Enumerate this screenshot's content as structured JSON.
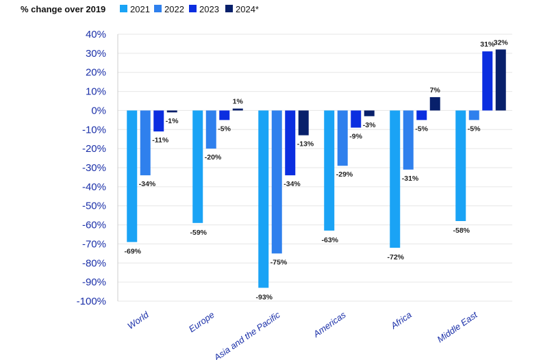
{
  "chart_data": {
    "type": "bar",
    "title": "% change over 2019",
    "categories": [
      "World",
      "Europe",
      "Asia and the Pacific",
      "Americas",
      "Africa",
      "Middle East"
    ],
    "series": [
      {
        "name": "2021",
        "color": "#1aa3f5",
        "values": [
          -69,
          -59,
          -93,
          -63,
          -72,
          -58
        ]
      },
      {
        "name": "2022",
        "color": "#2f80ed",
        "values": [
          -34,
          -20,
          -75,
          -29,
          -31,
          -5
        ]
      },
      {
        "name": "2023",
        "color": "#0b2ee0",
        "values": [
          -11,
          -5,
          -34,
          -9,
          -5,
          31
        ]
      },
      {
        "name": "2024*",
        "color": "#08206b",
        "values": [
          -1,
          1,
          -13,
          -3,
          7,
          32
        ]
      }
    ],
    "data_labels": [
      [
        "-69%",
        "-59%",
        "-93%",
        "-63%",
        "-72%",
        "-58%"
      ],
      [
        "-34%",
        "-20%",
        "-75%",
        "-29%",
        "-31%",
        "-5%"
      ],
      [
        "-11%",
        "-5%",
        "-34%",
        "-9%",
        "-5%",
        "31%"
      ],
      [
        "-1%",
        "1%",
        "-13%",
        "-3%",
        "7%",
        "32%"
      ]
    ],
    "ylim": [
      -100,
      40
    ],
    "yticks": [
      40,
      30,
      20,
      10,
      0,
      -10,
      -20,
      -30,
      -40,
      -50,
      -60,
      -70,
      -80,
      -90,
      -100
    ],
    "ytick_labels": [
      "40%",
      "30%",
      "20%",
      "10%",
      "0%",
      "-10%",
      "-20%",
      "-30%",
      "-40%",
      "-50%",
      "-60%",
      "-70%",
      "-80%",
      "-90%",
      "-100%"
    ],
    "legend_placement": "top",
    "grid": true
  }
}
